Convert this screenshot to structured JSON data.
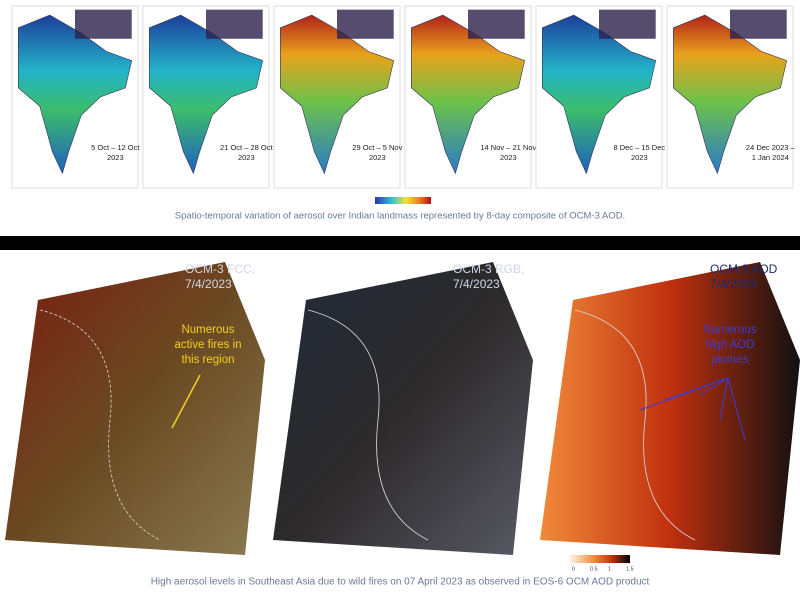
{
  "top": {
    "panels": [
      {
        "label": [
          "5 Oct – 12 Oct",
          "2023"
        ]
      },
      {
        "label": [
          "21 Oct – 28 Oct",
          "2023"
        ]
      },
      {
        "label": [
          "29 Oct – 5 Nov",
          "2023"
        ]
      },
      {
        "label": [
          "14 Nov – 21 Nov",
          "2023"
        ]
      },
      {
        "label": [
          "8 Dec – 15 Dec",
          "2023"
        ]
      },
      {
        "label": [
          "24 Dec 2023 –",
          "1 Jan 2024"
        ]
      }
    ],
    "caption": "Spatio-temporal variation of aerosol over Indian landmass represented by 8-day composite of OCM-3 AOD."
  },
  "bottom": {
    "panels": [
      {
        "title": [
          "OCM-3 FCC,",
          "7/4/2023"
        ],
        "annotation": [
          "Numerous",
          "active fires in",
          "this region"
        ]
      },
      {
        "title": [
          "OCM-3 RGB,",
          "7/4/2023"
        ]
      },
      {
        "title": [
          "OCM-3 AOD",
          "7/4/2023"
        ],
        "annotation": [
          "Numerous",
          "high AOD",
          "plumes"
        ]
      }
    ],
    "colorbar_ticks": [
      "0",
      "0.5",
      "1",
      "1.5"
    ],
    "caption": "High aerosol levels in Southeast Asia due to wild fires on 07 April 2023 as observed in EOS-6 OCM AOD product"
  }
}
